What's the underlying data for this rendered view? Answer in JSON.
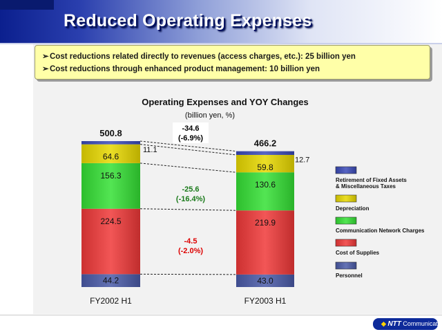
{
  "slide": {
    "title": "Reduced Operating Expenses",
    "bullets": [
      "Cost reductions related directly to revenues (access charges, etc.):  25 billion yen",
      "Cost reductions through enhanced product management:  10 billion yen"
    ],
    "bullet_marker": "➢"
  },
  "logo": {
    "swoosh": "◆",
    "brand": "NTT",
    "suffix": "Communications"
  },
  "colors": {
    "personnel": "#4a5aa8",
    "cost_of_supplies": "#f03838",
    "communication_network_charges": "#35e035",
    "depreciation": "#e8d800",
    "retirement": "#3a4ab8"
  },
  "chart_data": {
    "type": "bar",
    "stacked": true,
    "title": "Operating Expenses and YOY Changes",
    "subtitle": "(billion yen, %)",
    "categories": [
      "FY2002 H1",
      "FY2003 H1"
    ],
    "series": [
      {
        "name": "Personnel",
        "values": [
          44.2,
          43.0
        ],
        "labels": [
          "44.2",
          "43.0"
        ]
      },
      {
        "name": "Cost of Supplies",
        "values": [
          224.5,
          219.9
        ],
        "labels": [
          "224.5",
          "219.9"
        ]
      },
      {
        "name": "Communication Network Charges",
        "values": [
          156.3,
          130.6
        ],
        "labels": [
          "156.3",
          "130.6"
        ]
      },
      {
        "name": "Depreciation",
        "values": [
          64.6,
          59.8
        ],
        "labels": [
          "64.6",
          "59.8"
        ]
      },
      {
        "name": "Retirement of Fixed Assets & Miscellaneous Taxes",
        "values": [
          11.1,
          12.7
        ],
        "labels": [
          "11.1",
          "12.7"
        ]
      }
    ],
    "totals": [
      "500.8",
      "466.2"
    ],
    "legend": {
      "position": "right",
      "order": [
        4,
        3,
        2,
        1,
        0
      ],
      "labels": [
        [
          "Retirement of Fixed Assets",
          "& Miscellaneous Taxes"
        ],
        [
          "Depreciation"
        ],
        [
          "Communication Network Charges"
        ],
        [
          "Cost of Supplies"
        ],
        [
          "Personnel"
        ]
      ]
    },
    "annotations": [
      {
        "lines": [
          "-34.6",
          "(-6.9%)"
        ],
        "color": "#000000",
        "boxed": true
      },
      {
        "lines": [
          "-25.6",
          "(-16.4%)"
        ],
        "color": "#1a7a1a",
        "boxed": false
      },
      {
        "lines": [
          "-4.5",
          "(-2.0%)"
        ],
        "color": "#dd0000",
        "boxed": false
      }
    ],
    "connectors": "dashed",
    "grid": false
  }
}
